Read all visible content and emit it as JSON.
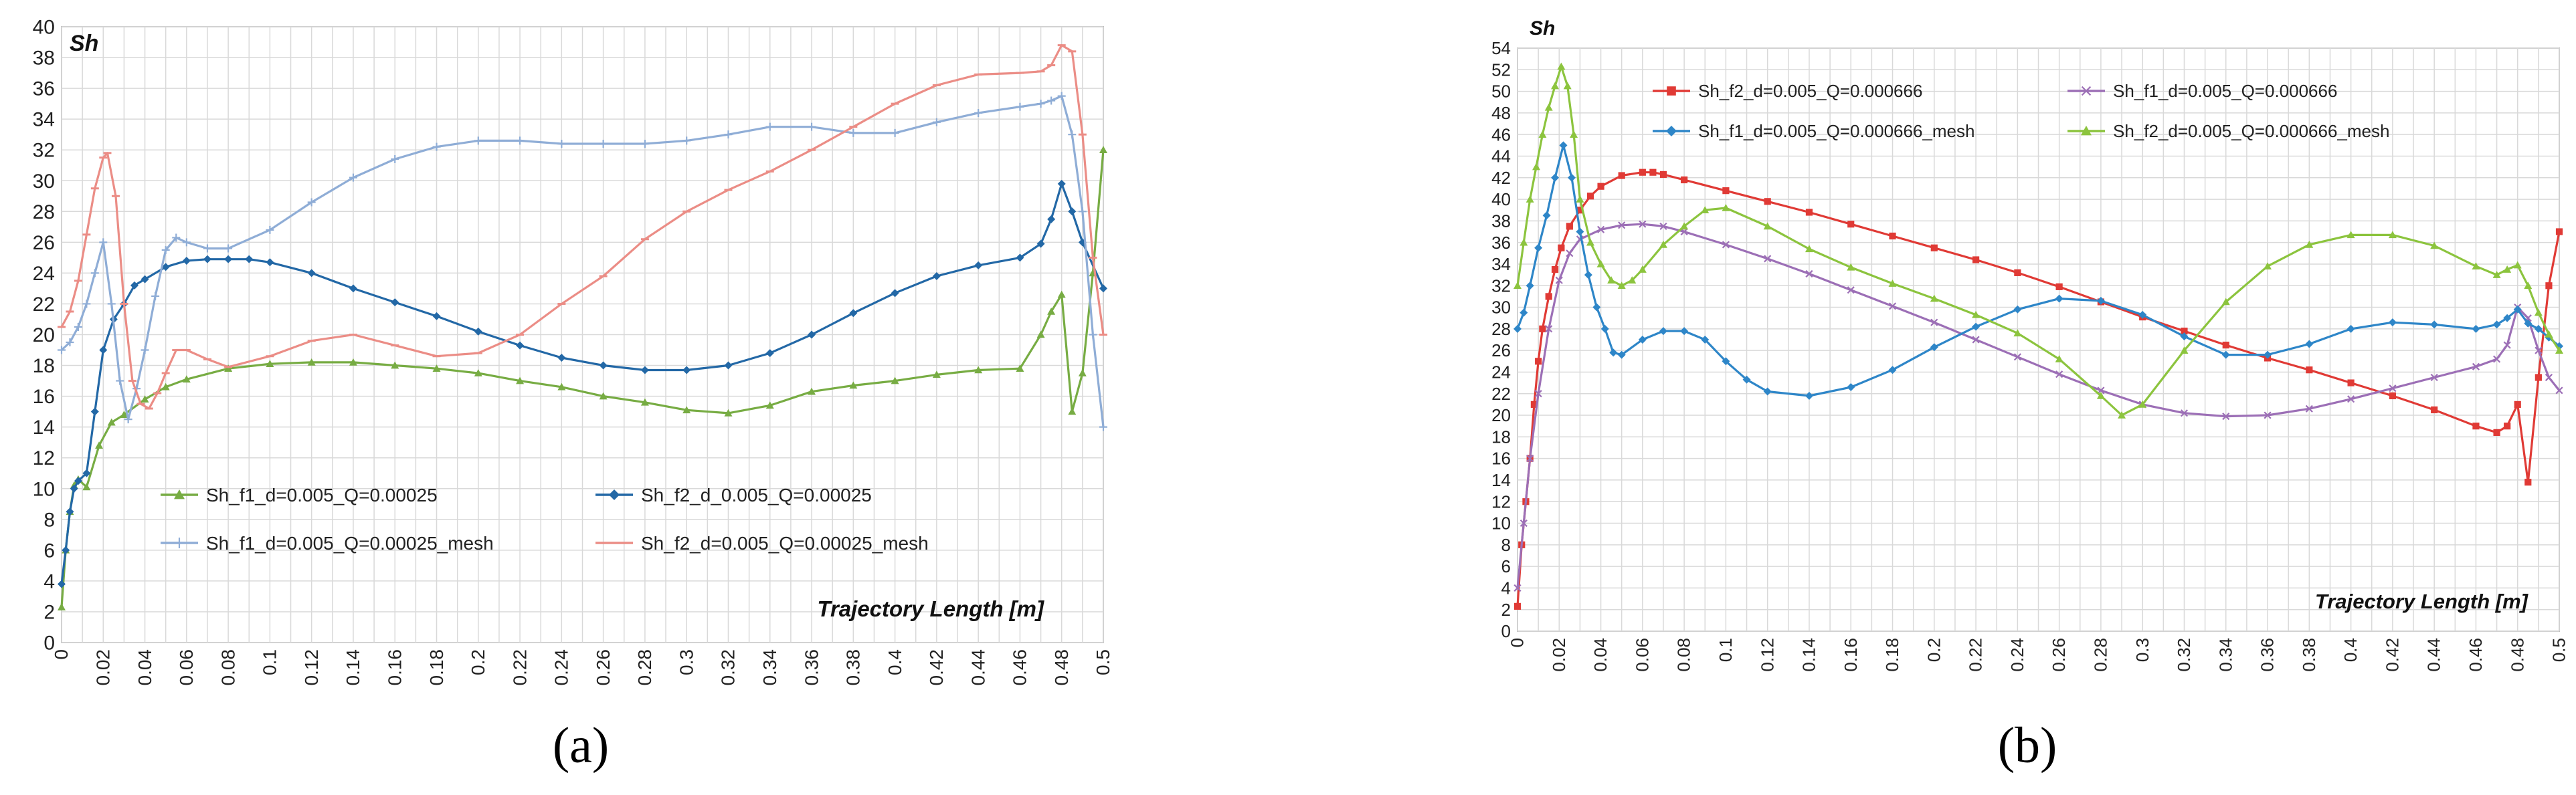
{
  "figure": {
    "panel_labels": [
      "(a)",
      "(b)"
    ]
  },
  "chart_data": [
    {
      "type": "line",
      "panel": "(a)",
      "ylabel": "Sh",
      "xlabel": "Trajectory Length [m]",
      "ylim": [
        0,
        40
      ],
      "yticks": [
        0,
        2,
        4,
        6,
        8,
        10,
        12,
        14,
        16,
        18,
        20,
        22,
        24,
        26,
        28,
        30,
        32,
        34,
        36,
        38,
        40
      ],
      "xlim": [
        0,
        0.5
      ],
      "xtick_labels": [
        "0",
        "0.02",
        "0.04",
        "0.06",
        "0.08",
        "0.1",
        "0.12",
        "0.14",
        "0.16",
        "0.18",
        "0.2",
        "0.22",
        "0.24",
        "0.26",
        "0.28",
        "0.3",
        "0.32",
        "0.34",
        "0.36",
        "0.38",
        "0.4",
        "0.42",
        "0.44",
        "0.46",
        "0.48",
        "0.5"
      ],
      "xticks": [
        0,
        0.02,
        0.04,
        0.06,
        0.08,
        0.1,
        0.12,
        0.14,
        0.16,
        0.18,
        0.2,
        0.22,
        0.24,
        0.26,
        0.28,
        0.3,
        0.32,
        0.34,
        0.36,
        0.38,
        0.4,
        0.42,
        0.44,
        0.46,
        0.48,
        0.5
      ],
      "grid": true,
      "legend": {
        "location": "lower-center",
        "columns": 2
      },
      "series": [
        {
          "name": "Sh_f1_d=0.005_Q=0.00025",
          "color": "#77ac43",
          "marker": "triangle",
          "x": [
            0,
            0.002,
            0.004,
            0.006,
            0.008,
            0.012,
            0.018,
            0.024,
            0.03,
            0.04,
            0.05,
            0.06,
            0.08,
            0.1,
            0.12,
            0.14,
            0.16,
            0.18,
            0.2,
            0.22,
            0.24,
            0.26,
            0.28,
            0.3,
            0.32,
            0.34,
            0.36,
            0.38,
            0.4,
            0.42,
            0.44,
            0.46,
            0.47,
            0.475,
            0.48,
            0.485,
            0.49,
            0.495,
            0.5
          ],
          "y": [
            2.3,
            6,
            8.5,
            10.2,
            10.6,
            10.1,
            12.8,
            14.3,
            14.8,
            15.8,
            16.6,
            17.1,
            17.8,
            18.1,
            18.2,
            18.2,
            18.0,
            17.8,
            17.5,
            17.0,
            16.6,
            16.0,
            15.6,
            15.1,
            14.9,
            15.4,
            16.3,
            16.7,
            17.0,
            17.4,
            17.7,
            17.8,
            20.0,
            21.5,
            22.6,
            15.0,
            17.5,
            24.0,
            32.0
          ]
        },
        {
          "name": "Sh_f2_d_0.005_Q=0.00025",
          "color": "#2368a6",
          "marker": "diamond",
          "x": [
            0,
            0.002,
            0.004,
            0.006,
            0.008,
            0.012,
            0.016,
            0.02,
            0.025,
            0.03,
            0.035,
            0.04,
            0.05,
            0.06,
            0.07,
            0.08,
            0.09,
            0.1,
            0.12,
            0.14,
            0.16,
            0.18,
            0.2,
            0.22,
            0.24,
            0.26,
            0.28,
            0.3,
            0.32,
            0.34,
            0.36,
            0.38,
            0.4,
            0.42,
            0.44,
            0.46,
            0.47,
            0.475,
            0.48,
            0.485,
            0.49,
            0.5
          ],
          "y": [
            3.8,
            6.0,
            8.5,
            10.0,
            10.5,
            11.0,
            15.0,
            19.0,
            21.0,
            22.0,
            23.2,
            23.6,
            24.4,
            24.8,
            24.9,
            24.9,
            24.9,
            24.7,
            24.0,
            23.0,
            22.1,
            21.2,
            20.2,
            19.3,
            18.5,
            18.0,
            17.7,
            17.7,
            18.0,
            18.8,
            20.0,
            21.4,
            22.7,
            23.8,
            24.5,
            25.0,
            25.9,
            27.5,
            29.8,
            28.0,
            26.0,
            23.0
          ]
        },
        {
          "name": "Sh_f1_d=0.005_Q=0.00025_mesh",
          "color": "#8fadd6",
          "marker": "plus",
          "x": [
            0,
            0.004,
            0.008,
            0.012,
            0.016,
            0.02,
            0.024,
            0.028,
            0.032,
            0.036,
            0.04,
            0.045,
            0.05,
            0.055,
            0.06,
            0.07,
            0.08,
            0.1,
            0.12,
            0.14,
            0.16,
            0.18,
            0.2,
            0.22,
            0.24,
            0.26,
            0.28,
            0.3,
            0.32,
            0.34,
            0.36,
            0.38,
            0.4,
            0.42,
            0.44,
            0.46,
            0.47,
            0.475,
            0.48,
            0.485,
            0.49,
            0.495,
            0.5
          ],
          "y": [
            19.0,
            19.5,
            20.5,
            22.0,
            24.0,
            26.0,
            22.0,
            17.0,
            14.5,
            16.5,
            19.0,
            22.5,
            25.5,
            26.3,
            26.0,
            25.6,
            25.6,
            26.8,
            28.6,
            30.2,
            31.4,
            32.2,
            32.6,
            32.6,
            32.4,
            32.4,
            32.4,
            32.6,
            33.0,
            33.5,
            33.5,
            33.1,
            33.1,
            33.8,
            34.4,
            34.8,
            35.0,
            35.2,
            35.5,
            33.0,
            28.0,
            20.0,
            14.0
          ]
        },
        {
          "name": "Sh_f2_d=0.005_Q=0.00025_mesh",
          "color": "#eb8d86",
          "marker": "dash",
          "x": [
            0,
            0.004,
            0.008,
            0.012,
            0.016,
            0.02,
            0.022,
            0.026,
            0.03,
            0.034,
            0.038,
            0.042,
            0.046,
            0.05,
            0.055,
            0.06,
            0.07,
            0.08,
            0.1,
            0.12,
            0.14,
            0.16,
            0.18,
            0.2,
            0.22,
            0.24,
            0.26,
            0.28,
            0.3,
            0.32,
            0.34,
            0.36,
            0.38,
            0.4,
            0.42,
            0.44,
            0.46,
            0.47,
            0.475,
            0.48,
            0.485,
            0.49,
            0.495,
            0.5
          ],
          "y": [
            20.5,
            21.5,
            23.5,
            26.5,
            29.5,
            31.5,
            31.8,
            29.0,
            22.0,
            17.0,
            15.5,
            15.2,
            16.2,
            17.5,
            19.0,
            19.0,
            18.4,
            17.9,
            18.6,
            19.6,
            20.0,
            19.3,
            18.6,
            18.8,
            20.0,
            22.0,
            23.8,
            26.2,
            28.0,
            29.4,
            30.6,
            32.0,
            33.5,
            35.0,
            36.2,
            36.9,
            37.0,
            37.1,
            37.5,
            38.8,
            38.4,
            33.0,
            25.0,
            20.0
          ]
        }
      ]
    },
    {
      "type": "line",
      "panel": "(b)",
      "ylabel": "Sh",
      "xlabel": "Trajectory Length [m]",
      "ylim": [
        0,
        54
      ],
      "yticks": [
        0,
        2,
        4,
        6,
        8,
        10,
        12,
        14,
        16,
        18,
        20,
        22,
        24,
        26,
        28,
        30,
        32,
        34,
        36,
        38,
        40,
        42,
        44,
        46,
        48,
        50,
        52,
        54
      ],
      "xlim": [
        0,
        0.5
      ],
      "xtick_labels": [
        "0",
        "0.02",
        "0.04",
        "0.06",
        "0.08",
        "0.1",
        "0.12",
        "0.14",
        "0.16",
        "0.18",
        "0.2",
        "0.22",
        "0.24",
        "0.26",
        "0.28",
        "0.3",
        "0.32",
        "0.34",
        "0.36",
        "0.38",
        "0.4",
        "0.42",
        "0.44",
        "0.46",
        "0.48",
        "0.5"
      ],
      "xticks": [
        0,
        0.02,
        0.04,
        0.06,
        0.08,
        0.1,
        0.12,
        0.14,
        0.16,
        0.18,
        0.2,
        0.22,
        0.24,
        0.26,
        0.28,
        0.3,
        0.32,
        0.34,
        0.36,
        0.38,
        0.4,
        0.42,
        0.44,
        0.46,
        0.48,
        0.5
      ],
      "grid": true,
      "legend": {
        "location": "top-center",
        "columns": 2
      },
      "series": [
        {
          "name": "Sh_f2_d=0.005_Q=0.000666",
          "color": "#e03a35",
          "marker": "square",
          "x": [
            0,
            0.002,
            0.004,
            0.006,
            0.008,
            0.01,
            0.012,
            0.015,
            0.018,
            0.021,
            0.025,
            0.03,
            0.035,
            0.04,
            0.05,
            0.06,
            0.065,
            0.07,
            0.08,
            0.1,
            0.12,
            0.14,
            0.16,
            0.18,
            0.2,
            0.22,
            0.24,
            0.26,
            0.28,
            0.3,
            0.32,
            0.34,
            0.36,
            0.38,
            0.4,
            0.42,
            0.44,
            0.46,
            0.47,
            0.475,
            0.48,
            0.485,
            0.49,
            0.495,
            0.5
          ],
          "y": [
            2.3,
            8.0,
            12.0,
            16.0,
            21.0,
            25.0,
            28.0,
            31.0,
            33.5,
            35.5,
            37.5,
            39.0,
            40.3,
            41.2,
            42.2,
            42.5,
            42.5,
            42.3,
            41.8,
            40.8,
            39.8,
            38.8,
            37.7,
            36.6,
            35.5,
            34.4,
            33.2,
            31.9,
            30.5,
            29.1,
            27.8,
            26.5,
            25.3,
            24.2,
            23.0,
            21.8,
            20.5,
            19.0,
            18.4,
            19.0,
            21.0,
            13.8,
            23.5,
            32.0,
            37.0
          ]
        },
        {
          "name": "Sh_f1_d=0.005_Q=0.000666",
          "color": "#9c6fb6",
          "marker": "cross",
          "x": [
            0,
            0.003,
            0.006,
            0.01,
            0.015,
            0.02,
            0.025,
            0.03,
            0.04,
            0.05,
            0.06,
            0.07,
            0.08,
            0.1,
            0.12,
            0.14,
            0.16,
            0.18,
            0.2,
            0.22,
            0.24,
            0.26,
            0.28,
            0.3,
            0.32,
            0.34,
            0.36,
            0.38,
            0.4,
            0.42,
            0.44,
            0.46,
            0.47,
            0.475,
            0.48,
            0.485,
            0.49,
            0.495,
            0.5
          ],
          "y": [
            4.0,
            10.0,
            16.0,
            22.0,
            28.0,
            32.5,
            35.0,
            36.3,
            37.2,
            37.6,
            37.7,
            37.5,
            37.0,
            35.8,
            34.5,
            33.1,
            31.6,
            30.1,
            28.6,
            27.0,
            25.4,
            23.8,
            22.3,
            21.0,
            20.2,
            19.9,
            20.0,
            20.6,
            21.5,
            22.5,
            23.5,
            24.5,
            25.2,
            26.5,
            30.0,
            29.0,
            26.0,
            23.5,
            22.3
          ]
        },
        {
          "name": "Sh_f1_d=0.005_Q=0.000666_mesh",
          "color": "#2e86c8",
          "marker": "diamond",
          "x": [
            0,
            0.003,
            0.006,
            0.01,
            0.014,
            0.018,
            0.022,
            0.026,
            0.03,
            0.034,
            0.038,
            0.042,
            0.046,
            0.05,
            0.06,
            0.07,
            0.08,
            0.09,
            0.1,
            0.11,
            0.12,
            0.14,
            0.16,
            0.18,
            0.2,
            0.22,
            0.24,
            0.26,
            0.28,
            0.3,
            0.32,
            0.34,
            0.36,
            0.38,
            0.4,
            0.42,
            0.44,
            0.46,
            0.47,
            0.475,
            0.48,
            0.485,
            0.49,
            0.495,
            0.5
          ],
          "y": [
            28.0,
            29.5,
            32.0,
            35.5,
            38.5,
            42.0,
            45.0,
            42.0,
            37.0,
            33.0,
            30.0,
            28.0,
            25.8,
            25.6,
            27.0,
            27.8,
            27.8,
            27.0,
            25.0,
            23.3,
            22.2,
            21.8,
            22.6,
            24.2,
            26.3,
            28.2,
            29.8,
            30.8,
            30.6,
            29.3,
            27.3,
            25.6,
            25.6,
            26.6,
            28.0,
            28.6,
            28.4,
            28.0,
            28.4,
            29.0,
            29.8,
            28.5,
            28.0,
            27.2,
            26.4
          ]
        },
        {
          "name": "Sh_f2_d=0.005_Q=0.000666_mesh",
          "color": "#8cc43e",
          "marker": "triangle",
          "x": [
            0,
            0.003,
            0.006,
            0.009,
            0.012,
            0.015,
            0.018,
            0.021,
            0.024,
            0.027,
            0.03,
            0.035,
            0.04,
            0.045,
            0.05,
            0.055,
            0.06,
            0.07,
            0.08,
            0.09,
            0.1,
            0.12,
            0.14,
            0.16,
            0.18,
            0.2,
            0.22,
            0.24,
            0.26,
            0.28,
            0.29,
            0.3,
            0.32,
            0.34,
            0.36,
            0.38,
            0.4,
            0.42,
            0.44,
            0.46,
            0.47,
            0.475,
            0.48,
            0.485,
            0.49,
            0.495,
            0.5
          ],
          "y": [
            32.0,
            36.0,
            40.0,
            43.0,
            46.0,
            48.5,
            50.5,
            52.3,
            50.5,
            46.0,
            40.0,
            36.0,
            34.0,
            32.5,
            32.0,
            32.5,
            33.5,
            35.8,
            37.5,
            39.0,
            39.2,
            37.5,
            35.4,
            33.7,
            32.2,
            30.8,
            29.3,
            27.6,
            25.2,
            21.8,
            20.0,
            21.0,
            26.0,
            30.5,
            33.8,
            35.8,
            36.7,
            36.7,
            35.7,
            33.8,
            33.0,
            33.5,
            33.9,
            32.0,
            29.5,
            27.5,
            26.0
          ]
        }
      ]
    }
  ]
}
